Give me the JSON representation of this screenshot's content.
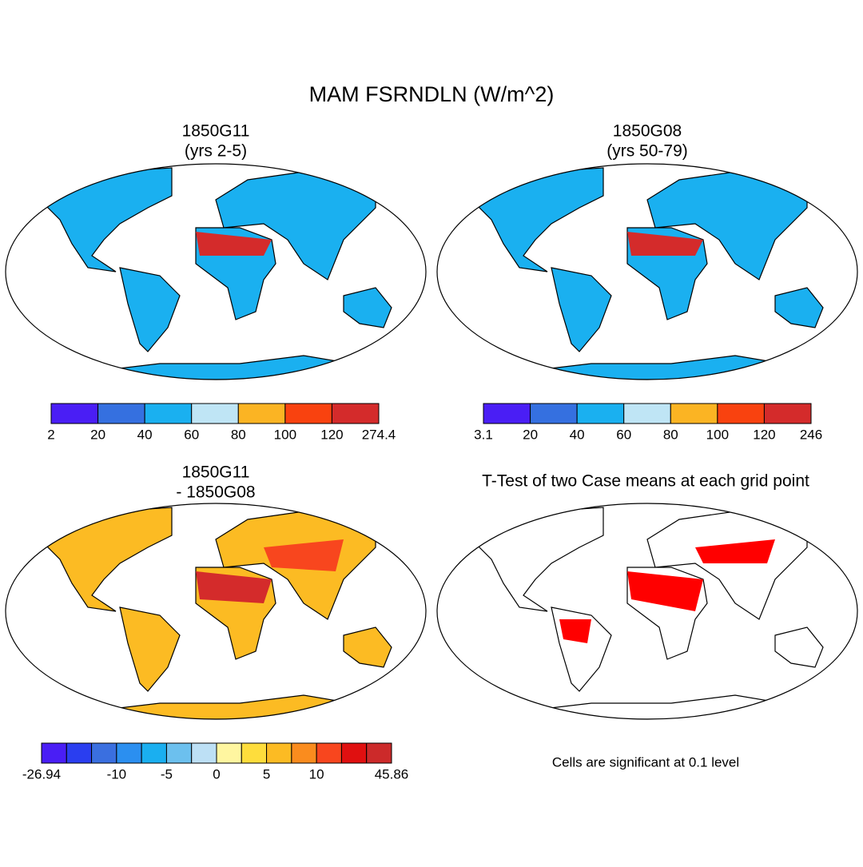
{
  "title": "MAM FSRNDLN (W/m^2)",
  "panels": [
    {
      "title": [
        "1850G11",
        "(yrs 2-5)"
      ],
      "colorbar": {
        "colors": [
          "#4a1ef5",
          "#3570e0",
          "#1ab0f0",
          "#bfe5f5",
          "#fbb423",
          "#f9420f",
          "#d42b2b"
        ],
        "labels": [
          "2",
          "20",
          "40",
          "60",
          "80",
          "100",
          "120",
          "274.4"
        ]
      }
    },
    {
      "title": [
        "1850G08",
        "(yrs 50-79)"
      ],
      "colorbar": {
        "colors": [
          "#4a1ef5",
          "#3570e0",
          "#1ab0f0",
          "#bfe5f5",
          "#fbb423",
          "#f9420f",
          "#d42b2b"
        ],
        "labels": [
          "3.1",
          "20",
          "40",
          "60",
          "80",
          "100",
          "120",
          "246"
        ]
      }
    },
    {
      "title": [
        "1850G11",
        "- 1850G08"
      ],
      "colorbar": {
        "colors": [
          "#4a1ef5",
          "#2a3ef0",
          "#3a6fe0",
          "#2b8ff0",
          "#1aaff0",
          "#6cc0ee",
          "#bde0f5",
          "#fff6a0",
          "#fedd3c",
          "#fcbb23",
          "#fa8c1e",
          "#f8461e",
          "#e01010",
          "#cc2a2a"
        ],
        "labels": [
          "-26.94",
          null,
          null,
          "-10",
          null,
          "-5",
          null,
          "0",
          null,
          "5",
          null,
          "10",
          null,
          null,
          "45.86"
        ]
      }
    },
    {
      "title": [
        "T-Test of two Case means at each grid point"
      ],
      "note": "Cells are significant at 0.1 level"
    }
  ]
}
